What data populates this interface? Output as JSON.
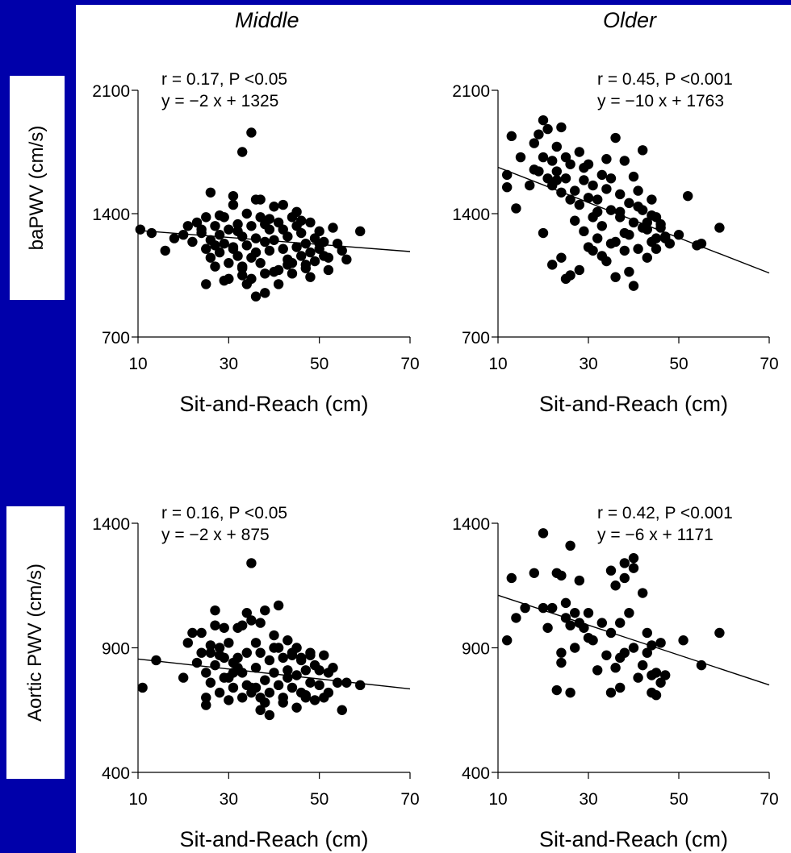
{
  "column_titles": [
    "Middle",
    "Older"
  ],
  "row_labels": [
    "baPWV (cm/s)",
    "Aortic PWV (cm/s)"
  ],
  "colors": {
    "background_band": "#0000AA",
    "points": "#000000",
    "line": "#000000"
  },
  "chart_data": [
    {
      "type": "scatter",
      "title": "Middle",
      "xlabel": "Sit-and-Reach (cm)",
      "ylabel": "baPWV (cm/s)",
      "xlim": [
        10,
        70
      ],
      "ylim": [
        700,
        2100
      ],
      "xticks": [
        10,
        30,
        50,
        70
      ],
      "yticks": [
        700,
        1400,
        2100
      ],
      "annotation": [
        "r = 0.17, P <0.05",
        "y = −2 x + 1325"
      ],
      "regression": {
        "slope": -2,
        "intercept": 1325,
        "x_range": [
          10,
          70
        ]
      },
      "x": [
        10.5,
        13,
        16,
        18,
        20,
        21,
        22,
        23,
        24,
        25,
        25,
        26,
        26,
        27,
        27,
        28,
        28,
        29,
        29,
        30,
        30,
        31,
        31,
        32,
        32,
        33,
        33,
        34,
        34,
        35,
        35,
        36,
        36,
        37,
        37,
        38,
        38,
        39,
        39,
        40,
        40,
        41,
        41,
        42,
        42,
        43,
        43,
        44,
        44,
        45,
        45,
        46,
        46,
        47,
        47,
        48,
        48,
        49,
        49,
        50,
        50,
        51,
        51,
        52,
        52,
        53,
        54,
        55,
        56,
        59,
        33,
        35,
        26,
        31,
        37,
        42,
        29,
        44,
        38,
        48,
        27,
        30,
        34,
        36,
        40,
        45,
        28,
        32,
        39,
        46,
        25,
        33,
        41,
        47,
        24,
        31,
        36,
        43,
        50,
        38,
        35,
        33
      ],
      "y": [
        1310,
        1290,
        1190,
        1260,
        1280,
        1330,
        1240,
        1350,
        1310,
        1200,
        1380,
        1250,
        1150,
        1330,
        1100,
        1280,
        1180,
        1230,
        1380,
        1120,
        1310,
        1200,
        1450,
        1160,
        1340,
        1270,
        1090,
        1400,
        1220,
        1330,
        1150,
        1260,
        1480,
        1120,
        1380,
        1240,
        1060,
        1310,
        1190,
        1250,
        1440,
        1080,
        1350,
        1200,
        1310,
        1140,
        1270,
        1380,
        1060,
        1210,
        1330,
        1160,
        1290,
        1230,
        1090,
        1350,
        1180,
        1260,
        1130,
        1300,
        1200,
        1160,
        1240,
        1150,
        1080,
        1320,
        1230,
        1190,
        1140,
        1300,
        1750,
        1860,
        1520,
        1500,
        1480,
        1450,
        1020,
        1120,
        950,
        1040,
        1220,
        1030,
        1000,
        930,
        1070,
        1410,
        1390,
        1300,
        1370,
        1360,
        1000,
        1050,
        1000,
        1110,
        1290,
        1210,
        1180,
        1110,
        1230,
        1340,
        1030,
        1100
      ]
    },
    {
      "type": "scatter",
      "title": "Older",
      "xlabel": "Sit-and-Reach (cm)",
      "ylabel": "",
      "xlim": [
        10,
        70
      ],
      "ylim": [
        700,
        2100
      ],
      "xticks": [
        10,
        30,
        50,
        70
      ],
      "yticks": [
        700,
        1400,
        2100
      ],
      "annotation": [
        "r = 0.45, P <0.001",
        "y = −10 x + 1763"
      ],
      "regression": {
        "slope": -10,
        "intercept": 1763,
        "x_range": [
          10,
          70
        ]
      },
      "x": [
        13,
        12,
        12,
        14,
        15,
        17,
        18,
        18,
        19,
        20,
        20,
        21,
        21,
        22,
        22,
        23,
        23,
        24,
        24,
        25,
        25,
        26,
        26,
        27,
        27,
        28,
        28,
        29,
        29,
        30,
        30,
        31,
        31,
        32,
        32,
        33,
        33,
        34,
        34,
        35,
        35,
        36,
        36,
        37,
        37,
        38,
        38,
        39,
        39,
        40,
        40,
        41,
        41,
        42,
        42,
        43,
        43,
        44,
        44,
        45,
        45,
        46,
        47,
        48,
        50,
        52,
        54,
        55,
        59,
        25,
        22,
        36,
        40,
        20,
        30,
        33,
        37,
        43,
        45,
        28,
        34,
        38,
        41,
        24,
        26,
        31,
        35,
        39,
        44,
        46,
        19,
        23,
        29,
        32,
        42,
        47
      ],
      "y": [
        1840,
        1620,
        1550,
        1430,
        1720,
        1560,
        1800,
        1650,
        1850,
        1930,
        1720,
        1600,
        1880,
        1700,
        1560,
        1640,
        1780,
        1520,
        1890,
        1600,
        1720,
        1480,
        1680,
        1530,
        1360,
        1750,
        1450,
        1590,
        1300,
        1490,
        1680,
        1380,
        1560,
        1260,
        1480,
        1620,
        1330,
        1540,
        1710,
        1420,
        1600,
        1830,
        1240,
        1510,
        1380,
        1700,
        1190,
        1460,
        1280,
        1610,
        1350,
        1530,
        1200,
        1420,
        1760,
        1310,
        1150,
        1480,
        1240,
        1380,
        1200,
        1340,
        1260,
        1230,
        1280,
        1500,
        1220,
        1230,
        1320,
        1030,
        1110,
        1040,
        990,
        1290,
        1210,
        1160,
        1410,
        1350,
        1260,
        1080,
        1130,
        1290,
        1440,
        1150,
        1050,
        1190,
        1230,
        1070,
        1390,
        1320,
        1640,
        1590,
        1660,
        1410,
        1320,
        1270
      ]
    },
    {
      "type": "scatter",
      "title": "",
      "xlabel": "Sit-and-Reach (cm)",
      "ylabel": "Aortic PWV (cm/s)",
      "xlim": [
        10,
        70
      ],
      "ylim": [
        400,
        1400
      ],
      "xticks": [
        10,
        30,
        50,
        70
      ],
      "yticks": [
        400,
        900,
        1400
      ],
      "annotation": [
        "r = 0.16, P <0.05",
        "y = −2 x + 875"
      ],
      "regression": {
        "slope": -2,
        "intercept": 875,
        "x_range": [
          10,
          70
        ]
      },
      "x": [
        11,
        14,
        20,
        21,
        22,
        23,
        24,
        25,
        25,
        26,
        26,
        27,
        27,
        28,
        28,
        29,
        29,
        30,
        30,
        31,
        31,
        32,
        32,
        33,
        33,
        34,
        34,
        35,
        35,
        36,
        36,
        37,
        37,
        38,
        38,
        39,
        39,
        40,
        40,
        41,
        41,
        42,
        42,
        43,
        43,
        44,
        44,
        45,
        45,
        46,
        46,
        47,
        47,
        48,
        48,
        49,
        49,
        50,
        50,
        51,
        51,
        52,
        52,
        53,
        54,
        55,
        56,
        59,
        35,
        26,
        27,
        37,
        41,
        30,
        33,
        44,
        25,
        28,
        32,
        36,
        39,
        42,
        45,
        29,
        34,
        38,
        40,
        47,
        31,
        35,
        43,
        48,
        24,
        37,
        46
      ],
      "y": [
        740,
        850,
        780,
        920,
        960,
        840,
        880,
        800,
        700,
        910,
        760,
        1050,
        830,
        720,
        870,
        980,
        780,
        920,
        690,
        840,
        740,
        860,
        980,
        700,
        800,
        1040,
        880,
        740,
        1240,
        920,
        820,
        700,
        880,
        1050,
        770,
        850,
        720,
        900,
        800,
        1070,
        750,
        860,
        700,
        930,
        810,
        740,
        880,
        660,
        790,
        860,
        720,
        810,
        700,
        880,
        760,
        830,
        690,
        810,
        750,
        870,
        700,
        800,
        720,
        820,
        760,
        650,
        760,
        750,
        1010,
        880,
        990,
        1000,
        900,
        780,
        990,
        870,
        670,
        900,
        820,
        740,
        630,
        680,
        900,
        860,
        750,
        680,
        950,
        710,
        800,
        720,
        780,
        870,
        960,
        650,
        850
      ]
    },
    {
      "type": "scatter",
      "title": "",
      "xlabel": "Sit-and-Reach (cm)",
      "ylabel": "",
      "xlim": [
        10,
        70
      ],
      "ylim": [
        400,
        1400
      ],
      "xticks": [
        10,
        30,
        50,
        70
      ],
      "yticks": [
        400,
        900,
        1400
      ],
      "annotation": [
        "r = 0.42, P <0.001",
        "y = −6 x + 1171"
      ],
      "regression": {
        "slope": -6,
        "intercept": 1171,
        "x_range": [
          10,
          70
        ]
      },
      "x": [
        12,
        13,
        14,
        16,
        18,
        20,
        20,
        21,
        22,
        23,
        24,
        24,
        25,
        25,
        26,
        26,
        27,
        27,
        28,
        29,
        30,
        31,
        32,
        33,
        34,
        35,
        35,
        36,
        36,
        37,
        37,
        38,
        38,
        39,
        40,
        40,
        41,
        42,
        42,
        43,
        43,
        44,
        44,
        45,
        45,
        46,
        46,
        47,
        51,
        55,
        59,
        26,
        23,
        24,
        38,
        40,
        37,
        28,
        35,
        44,
        30
      ],
      "y": [
        930,
        1180,
        1020,
        1060,
        1200,
        1360,
        1060,
        980,
        1060,
        1200,
        1190,
        880,
        1020,
        1080,
        1310,
        990,
        1040,
        900,
        1170,
        980,
        1040,
        930,
        810,
        1000,
        870,
        960,
        1210,
        820,
        1150,
        860,
        1000,
        1180,
        880,
        1040,
        1260,
        900,
        780,
        1120,
        830,
        960,
        880,
        790,
        910,
        710,
        800,
        760,
        920,
        790,
        930,
        830,
        960,
        720,
        730,
        840,
        1240,
        1220,
        740,
        1000,
        720,
        720,
        940
      ]
    }
  ]
}
